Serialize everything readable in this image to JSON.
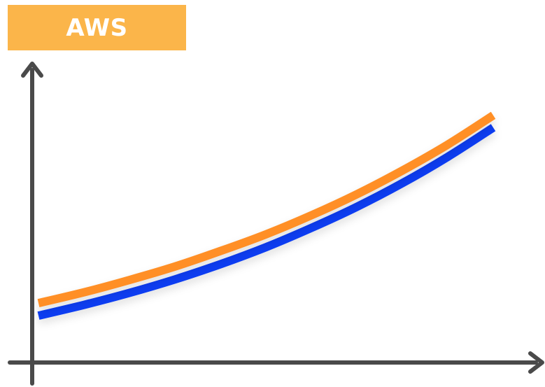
{
  "header": {
    "title": "AWS"
  },
  "colors": {
    "title_background": "#fbb54a",
    "axis": "#4a4a4a",
    "series_1": "#ff8f26",
    "series_2": "#0b3ef2"
  },
  "chart_data": {
    "type": "line",
    "title": "AWS",
    "xlabel": "",
    "ylabel": "",
    "grid": false,
    "legend": "none",
    "xlim": [
      0,
      10
    ],
    "ylim": [
      0,
      10
    ],
    "series": [
      {
        "color": "#ff8f26",
        "x": [
          0,
          1,
          2,
          3,
          4,
          5,
          6,
          7,
          8,
          9,
          10
        ],
        "y": [
          2.03,
          2.4,
          2.82,
          3.28,
          3.81,
          4.38,
          5.03,
          5.75,
          6.56,
          7.45,
          8.45
        ]
      },
      {
        "color": "#0b3ef2",
        "x": [
          0,
          1,
          2,
          3,
          4,
          5,
          6,
          7,
          8,
          9,
          10
        ],
        "y": [
          1.6,
          1.97,
          2.38,
          2.84,
          3.36,
          3.94,
          4.6,
          5.32,
          6.13,
          7.03,
          8.03
        ]
      }
    ]
  }
}
